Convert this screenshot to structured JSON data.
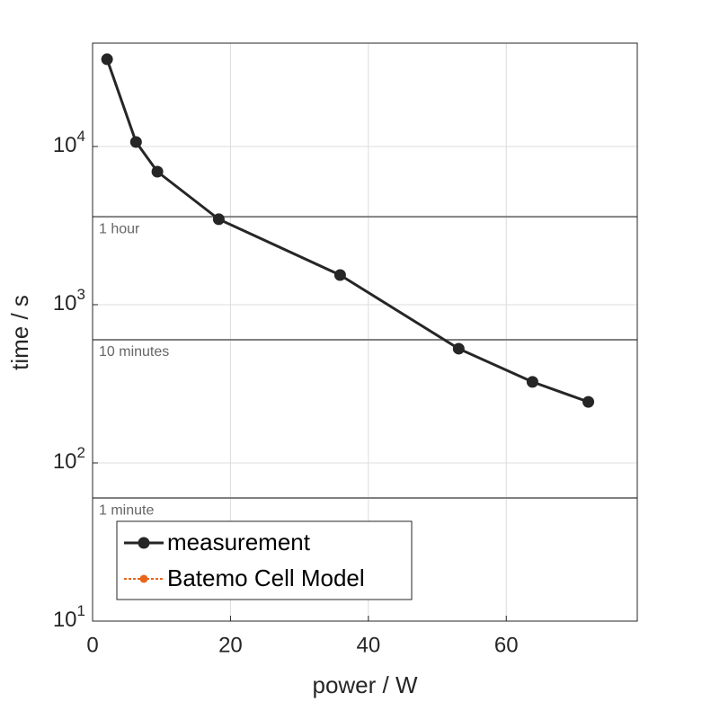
{
  "chart_data": {
    "type": "line",
    "xlabel": "power / W",
    "ylabel": "time / s",
    "x": [
      2.1,
      6.3,
      9.4,
      18.3,
      35.9,
      53.1,
      63.8,
      71.9
    ],
    "series": [
      {
        "name": "measurement",
        "color": "#262626",
        "values": [
          35600,
          10670,
          6930,
          3470,
          1540,
          527,
          325,
          243
        ]
      },
      {
        "name": "Batemo Cell Model",
        "color": "#e8661a",
        "values": [
          null,
          null,
          null,
          null,
          null,
          null,
          null,
          null
        ]
      }
    ],
    "xlim": [
      0,
      79
    ],
    "xticks": [
      0,
      20,
      40,
      60
    ],
    "ylim": [
      10,
      45000
    ],
    "yscale": "log",
    "yticks": [
      {
        "value": 10,
        "label": "10^1"
      },
      {
        "value": 100,
        "label": "10^2"
      },
      {
        "value": 1000,
        "label": "10^3"
      },
      {
        "value": 10000,
        "label": "10^4"
      }
    ],
    "reference_lines": [
      {
        "value": 3600,
        "label": "1 hour"
      },
      {
        "value": 600,
        "label": "10 minutes"
      },
      {
        "value": 60,
        "label": "1 minute"
      }
    ],
    "reference_color": "#808080",
    "grid": true,
    "legend": "lower left"
  }
}
